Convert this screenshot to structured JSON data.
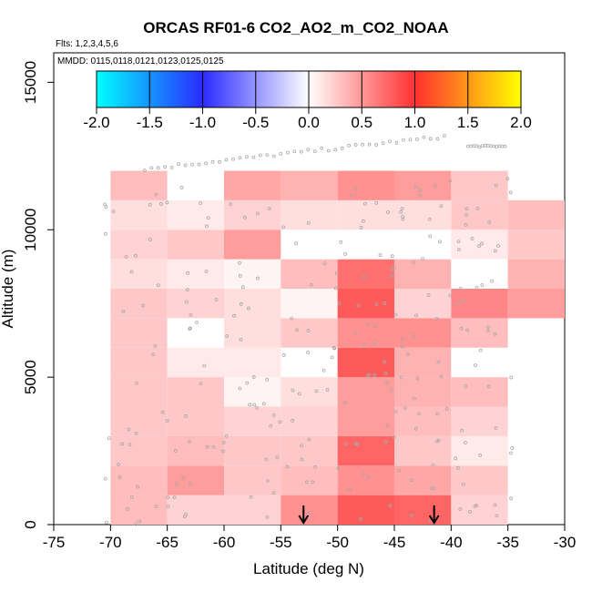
{
  "chart_data": {
    "type": "heatmap",
    "title": "ORCAS RF01-6 CO2_AO2_m_CO2_NOAA",
    "flights_label": "Flts: 1,2,3,4,5,6",
    "dates_label": "MMDD: 0115,0118,0121,0123,0125,0125",
    "xlabel": "Latitude (deg N)",
    "ylabel": "Altitude (m)",
    "xlim": [
      -75,
      -30
    ],
    "ylim": [
      0,
      16000
    ],
    "xticks": [
      -75,
      -70,
      -65,
      -60,
      -55,
      -50,
      -45,
      -40,
      -35,
      -30
    ],
    "yticks": [
      0,
      5000,
      10000,
      15000
    ],
    "colorbar": {
      "min": -2.0,
      "max": 2.0,
      "ticks": [
        "-2.0",
        "-1.5",
        "-1.0",
        "-0.5",
        "0.0",
        "0.5",
        "1.0",
        "1.5",
        "2.0"
      ]
    },
    "lat_bins": [
      -70,
      -65,
      -60,
      -55,
      -50,
      -45,
      -40,
      -35,
      -30
    ],
    "alt_bins": [
      0,
      1000,
      2000,
      3000,
      4000,
      5000,
      6000,
      7000,
      8000,
      9000,
      10000,
      11000,
      12000
    ],
    "values": [
      [
        0.3,
        0.2,
        0.2,
        0.5,
        0.75,
        0.7,
        0.2,
        null
      ],
      [
        0.3,
        0.45,
        0.25,
        0.3,
        0.5,
        0.4,
        0.25,
        null
      ],
      [
        0.25,
        0.3,
        0.25,
        0.25,
        0.7,
        0.25,
        0.1,
        null
      ],
      [
        0.25,
        0.25,
        0.2,
        0.2,
        0.45,
        0.3,
        0.2,
        null
      ],
      [
        0.25,
        0.25,
        0.05,
        0.15,
        0.45,
        0.35,
        0.3,
        null
      ],
      [
        0.25,
        0.1,
        0.1,
        0.0,
        0.75,
        0.35,
        0.0,
        null
      ],
      [
        0.25,
        0.0,
        0.15,
        0.25,
        0.5,
        0.5,
        0.3,
        null
      ],
      [
        0.25,
        0.2,
        0.15,
        0.05,
        0.75,
        0.2,
        0.55,
        0.45
      ],
      [
        0.15,
        0.1,
        0.05,
        0.3,
        0.65,
        0.35,
        0.0,
        0.35
      ],
      [
        0.2,
        0.25,
        0.45,
        0.0,
        0.0,
        0.0,
        0.1,
        0.25
      ],
      [
        0.15,
        0.1,
        0.2,
        0.15,
        0.15,
        0.15,
        0.25,
        0.3
      ],
      [
        0.3,
        0.0,
        0.4,
        0.35,
        0.5,
        0.45,
        0.25,
        null
      ]
    ],
    "arrows_latitude": [
      -53,
      -41.5
    ]
  }
}
